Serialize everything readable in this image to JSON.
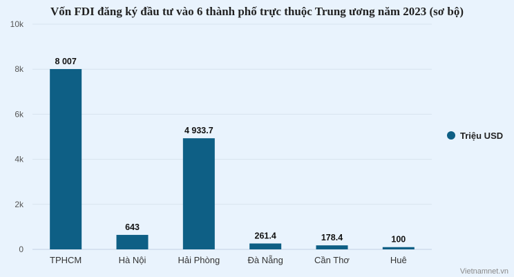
{
  "chart_data": {
    "type": "bar",
    "title": "Vốn FDI đăng ký đầu tư vào 6 thành phố trực thuộc Trung ương năm 2023 (sơ bộ)",
    "categories": [
      "TPHCM",
      "Hà Nội",
      "Hải Phòng",
      "Đà Nẵng",
      "Cần Thơ",
      "Huê"
    ],
    "series": [
      {
        "name": "Triệu USD",
        "values": [
          8007,
          643,
          4933.7,
          261.4,
          178.4,
          100
        ],
        "labels": [
          "8 007",
          "643",
          "4 933.7",
          "261.4",
          "178.4",
          "100"
        ],
        "color": "#0e5f85"
      }
    ],
    "ylim": [
      0,
      10000
    ],
    "yticks": [
      0,
      2000,
      4000,
      6000,
      8000,
      10000
    ],
    "ytick_labels": [
      "0",
      "2k",
      "4k",
      "6k",
      "8k",
      "10k"
    ],
    "grid": true,
    "legend_placement": "right"
  },
  "credit": "Vietnamnet.vn",
  "colors": {
    "background": "#e9f3fd",
    "bar": "#0e5f85",
    "grid": "#d8e3ee"
  }
}
